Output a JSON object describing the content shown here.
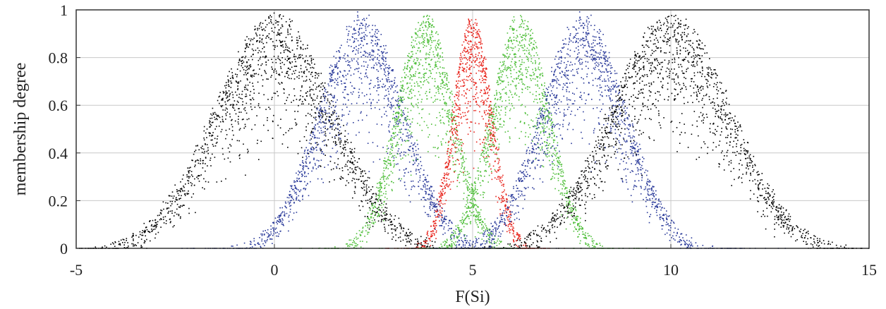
{
  "chart_data": {
    "type": "scatter",
    "title": "",
    "xlabel": "F(Si)",
    "ylabel": "membership degree",
    "xlim": [
      -5,
      15
    ],
    "ylim": [
      0,
      1
    ],
    "x_ticks": [
      -5,
      0,
      5,
      10,
      15
    ],
    "y_ticks": [
      0,
      0.2,
      0.4,
      0.6,
      0.8,
      1
    ],
    "x_tick_labels": [
      "-5",
      "0",
      "5",
      "10",
      "15"
    ],
    "y_tick_labels": [
      "0",
      "0.2",
      "0.4",
      "0.6",
      "0.8",
      "1"
    ],
    "grid": true,
    "legend": "none",
    "description_of_points": "Noisy membership-function samples; peak centers and spreads estimated from the plot",
    "series": [
      {
        "color": "#000000",
        "center": 0.0,
        "sigma": 1.55,
        "peak": 1.0
      },
      {
        "color": "#2a3a9a",
        "center": 2.2,
        "sigma": 1.1,
        "peak": 1.0
      },
      {
        "color": "#4fbf3a",
        "center": 3.8,
        "sigma": 0.75,
        "peak": 1.0
      },
      {
        "color": "#e8241c",
        "center": 5.0,
        "sigma": 0.5,
        "peak": 1.0
      },
      {
        "color": "#4fbf3a",
        "center": 6.2,
        "sigma": 0.75,
        "peak": 1.0
      },
      {
        "color": "#2a3a9a",
        "center": 7.8,
        "sigma": 1.1,
        "peak": 1.0
      },
      {
        "color": "#000000",
        "center": 10.0,
        "sigma": 1.55,
        "peak": 1.0
      }
    ]
  }
}
